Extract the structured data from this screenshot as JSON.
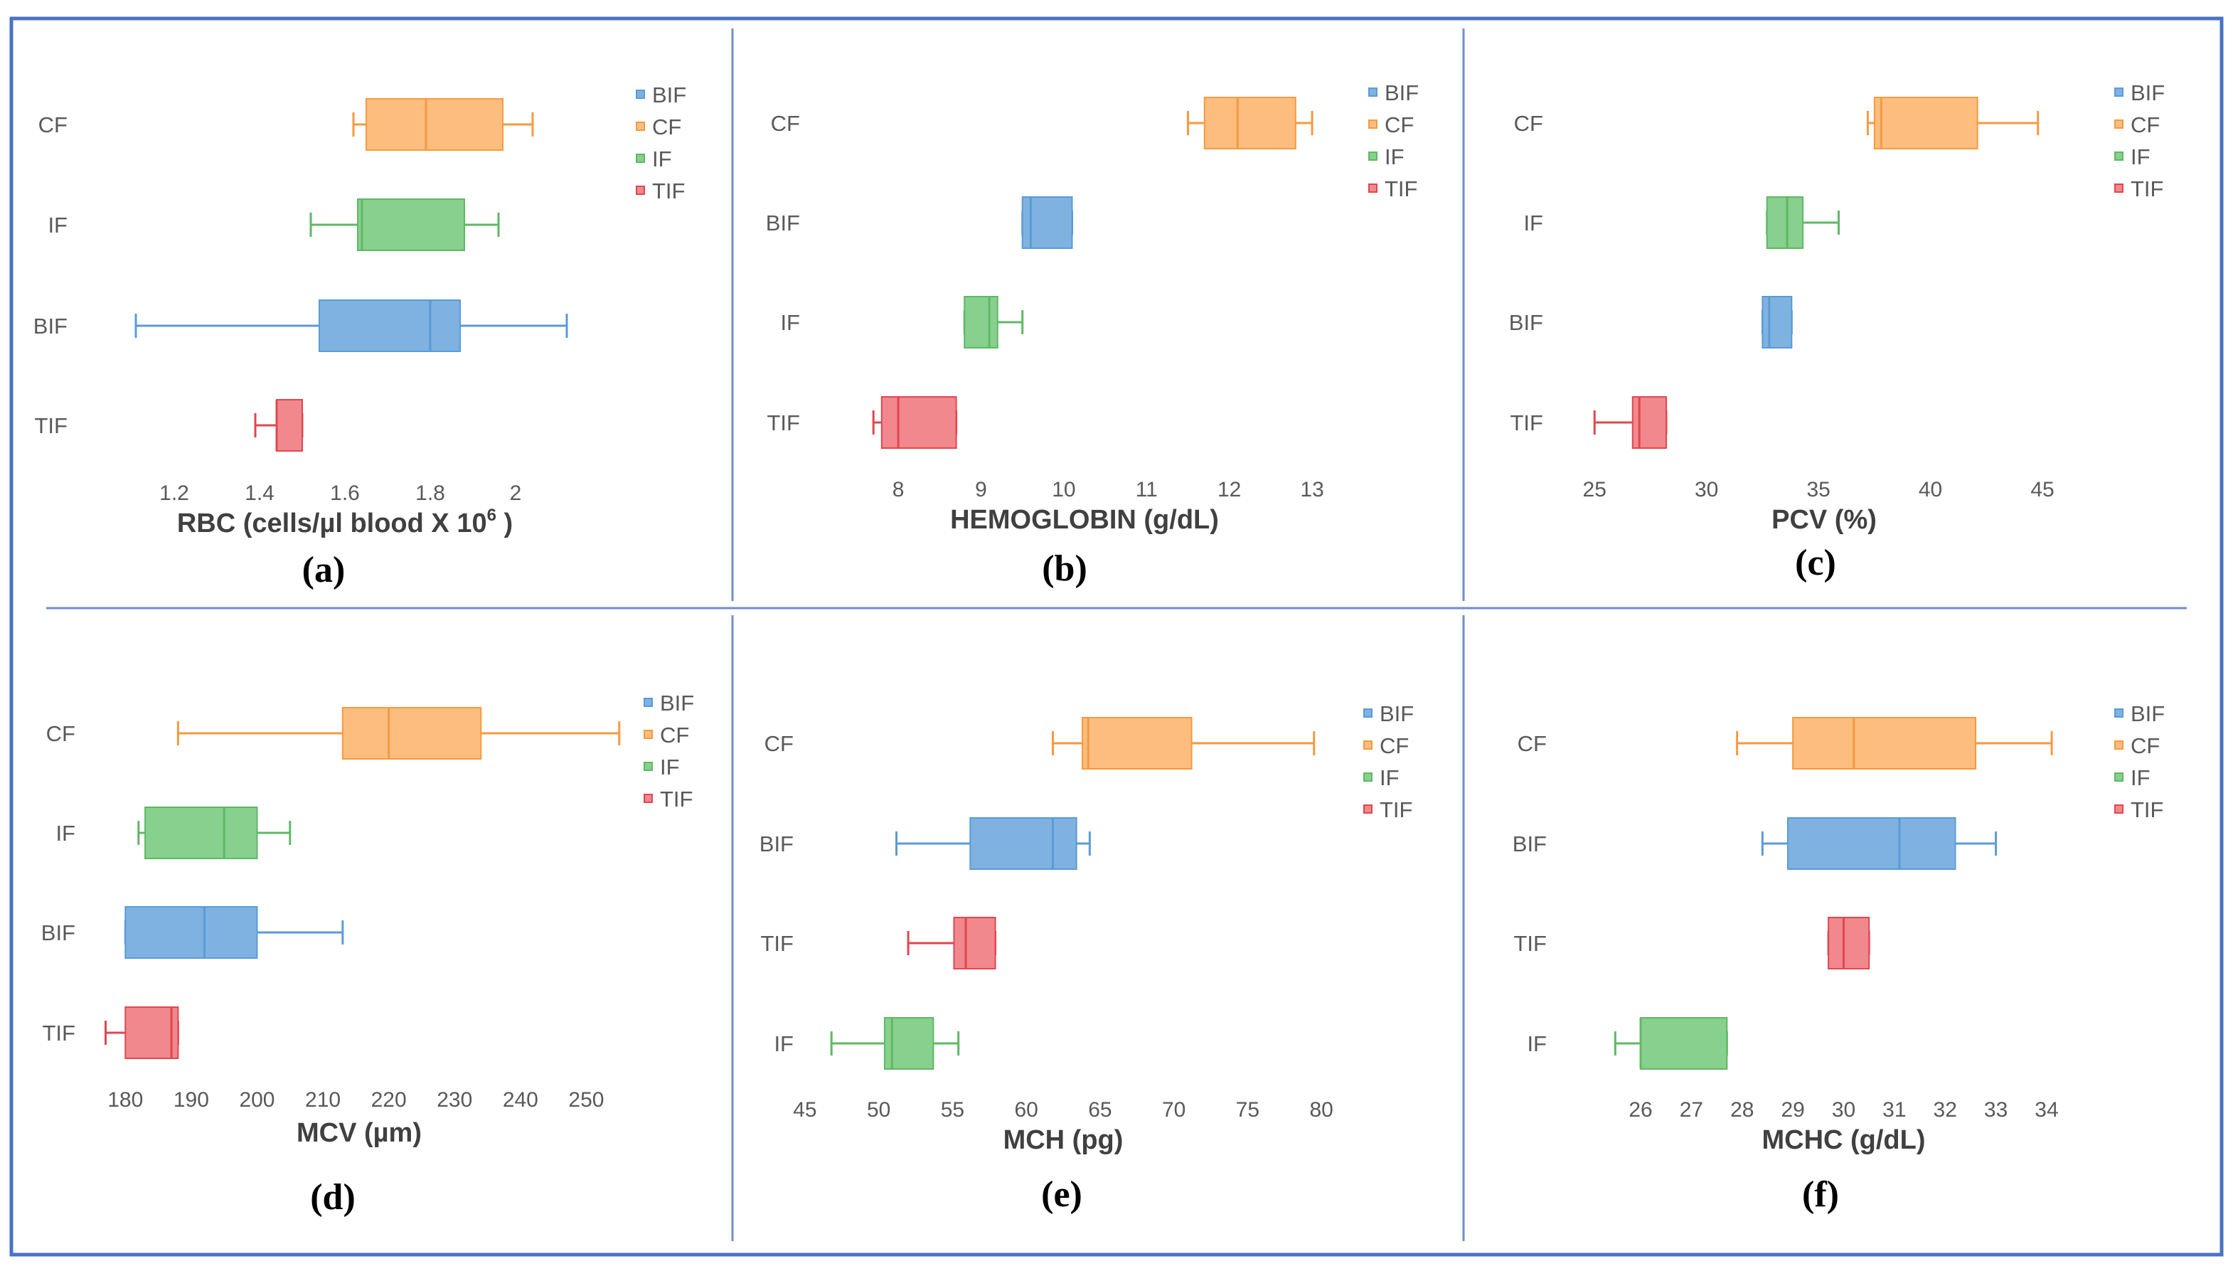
{
  "figure": {
    "border_color": "#4a72c4",
    "divider_color": "#6f8fc9"
  },
  "series_colors": {
    "BIF": {
      "fill": "#7fb2e1",
      "stroke": "#5b9bd5"
    },
    "CF": {
      "fill": "#fdbd7f",
      "stroke": "#f59a40"
    },
    "IF": {
      "fill": "#88d08e",
      "stroke": "#5fb865"
    },
    "TIF": {
      "fill": "#f1888d",
      "stroke": "#e0474f"
    }
  },
  "chart_data": [
    {
      "type": "box",
      "panel_label": "(a)",
      "title": "RBC (cells/µl blood X 10",
      "title_sup": "6",
      "title_suffix": " )",
      "xlim": [
        1.0,
        2.2
      ],
      "ticks": [
        1.2,
        1.4,
        1.6,
        1.8,
        2
      ],
      "tick_labels": [
        "1.2",
        "1.4",
        "1.6",
        "1.8",
        "2"
      ],
      "legend": [
        "BIF",
        "CF",
        "IF",
        "TIF"
      ],
      "boxes": [
        {
          "name": "CF",
          "min": 1.62,
          "q1": 1.65,
          "median": 1.79,
          "q3": 1.97,
          "max": 2.04
        },
        {
          "name": "IF",
          "min": 1.52,
          "q1": 1.63,
          "median": 1.64,
          "q3": 1.88,
          "max": 1.96
        },
        {
          "name": "BIF",
          "min": 1.11,
          "q1": 1.54,
          "median": 1.8,
          "q3": 1.87,
          "max": 2.12
        },
        {
          "name": "TIF",
          "min": 1.39,
          "q1": 1.44,
          "median": 1.44,
          "q3": 1.5,
          "max": 1.5
        }
      ]
    },
    {
      "type": "box",
      "panel_label": "(b)",
      "title": "HEMOGLOBIN (g/dL)",
      "xlim": [
        7.2,
        13.3
      ],
      "ticks": [
        8,
        9,
        10,
        11,
        12,
        13
      ],
      "tick_labels": [
        "8",
        "9",
        "10",
        "11",
        "12",
        "13"
      ],
      "legend": [
        "BIF",
        "CF",
        "IF",
        "TIF"
      ],
      "boxes": [
        {
          "name": "CF",
          "min": 11.5,
          "q1": 11.7,
          "median": 12.1,
          "q3": 12.8,
          "max": 13.0
        },
        {
          "name": "BIF",
          "min": 9.5,
          "q1": 9.5,
          "median": 9.6,
          "q3": 10.1,
          "max": 10.1
        },
        {
          "name": "IF",
          "min": 8.8,
          "q1": 8.8,
          "median": 9.1,
          "q3": 9.2,
          "max": 9.5
        },
        {
          "name": "TIF",
          "min": 7.7,
          "q1": 7.8,
          "median": 8.0,
          "q3": 8.7,
          "max": 8.7
        }
      ]
    },
    {
      "type": "box",
      "panel_label": "(c)",
      "title": "PCV (%)",
      "xlim": [
        23.5,
        47.0
      ],
      "ticks": [
        25,
        30,
        35,
        40,
        45
      ],
      "tick_labels": [
        "25",
        "30",
        "35",
        "40",
        "45"
      ],
      "legend": [
        "BIF",
        "CF",
        "IF",
        "TIF"
      ],
      "boxes": [
        {
          "name": "CF",
          "min": 37.2,
          "q1": 37.5,
          "median": 37.8,
          "q3": 42.1,
          "max": 44.8
        },
        {
          "name": "IF",
          "min": 32.7,
          "q1": 32.7,
          "median": 33.6,
          "q3": 34.3,
          "max": 35.9
        },
        {
          "name": "BIF",
          "min": 32.5,
          "q1": 32.5,
          "median": 32.8,
          "q3": 33.8,
          "max": 33.8
        },
        {
          "name": "TIF",
          "min": 25.0,
          "q1": 26.7,
          "median": 27.0,
          "q3": 28.2,
          "max": 28.2
        }
      ]
    },
    {
      "type": "box",
      "panel_label": "(d)",
      "title": "MCV (µm)",
      "xlim": [
        175,
        256
      ],
      "ticks": [
        180,
        190,
        200,
        210,
        220,
        230,
        240,
        250
      ],
      "tick_labels": [
        "180",
        "190",
        "200",
        "210",
        "220",
        "230",
        "240",
        "250"
      ],
      "legend": [
        "BIF",
        "CF",
        "IF",
        "TIF"
      ],
      "boxes": [
        {
          "name": "CF",
          "min": 188,
          "q1": 213,
          "median": 220,
          "q3": 234,
          "max": 255
        },
        {
          "name": "IF",
          "min": 182,
          "q1": 183,
          "median": 195,
          "q3": 200,
          "max": 205
        },
        {
          "name": "BIF",
          "min": 180,
          "q1": 180,
          "median": 192,
          "q3": 200,
          "max": 213
        },
        {
          "name": "TIF",
          "min": 177,
          "q1": 180,
          "median": 187,
          "q3": 188,
          "max": 188
        }
      ]
    },
    {
      "type": "box",
      "panel_label": "(e)",
      "title": "MCH (pg)",
      "xlim": [
        42.5,
        82.5
      ],
      "ticks": [
        45,
        50,
        55,
        60,
        65,
        70,
        75,
        80
      ],
      "tick_labels": [
        "45",
        "50",
        "55",
        "60",
        "65",
        "70",
        "75",
        "80"
      ],
      "legend": [
        "BIF",
        "CF",
        "IF",
        "TIF"
      ],
      "boxes": [
        {
          "name": "CF",
          "min": 61.8,
          "q1": 63.8,
          "median": 64.2,
          "q3": 71.2,
          "max": 79.5
        },
        {
          "name": "BIF",
          "min": 51.2,
          "q1": 56.2,
          "median": 61.8,
          "q3": 63.4,
          "max": 64.3
        },
        {
          "name": "TIF",
          "min": 52.0,
          "q1": 55.1,
          "median": 55.9,
          "q3": 57.9,
          "max": 57.9
        },
        {
          "name": "IF",
          "min": 46.8,
          "q1": 50.4,
          "median": 50.9,
          "q3": 53.7,
          "max": 55.4
        }
      ]
    },
    {
      "type": "box",
      "panel_label": "(f)",
      "title": "MCHC (g/dL)",
      "xlim": [
        24.5,
        35.5
      ],
      "ticks": [
        26,
        27,
        28,
        29,
        30,
        31,
        32,
        33,
        34
      ],
      "tick_labels": [
        "26",
        "27",
        "28",
        "29",
        "30",
        "31",
        "32",
        "33",
        "34"
      ],
      "legend": [
        "BIF",
        "CF",
        "IF",
        "TIF"
      ],
      "boxes": [
        {
          "name": "CF",
          "min": 27.9,
          "q1": 29.0,
          "median": 30.2,
          "q3": 32.6,
          "max": 34.1
        },
        {
          "name": "BIF",
          "min": 28.4,
          "q1": 28.9,
          "median": 31.1,
          "q3": 32.2,
          "max": 33.0
        },
        {
          "name": "TIF",
          "min": 29.7,
          "q1": 29.7,
          "median": 30.0,
          "q3": 30.5,
          "max": 30.5
        },
        {
          "name": "IF",
          "min": 25.5,
          "q1": 26.0,
          "median": 26.0,
          "q3": 27.7,
          "max": 27.7
        }
      ]
    }
  ]
}
